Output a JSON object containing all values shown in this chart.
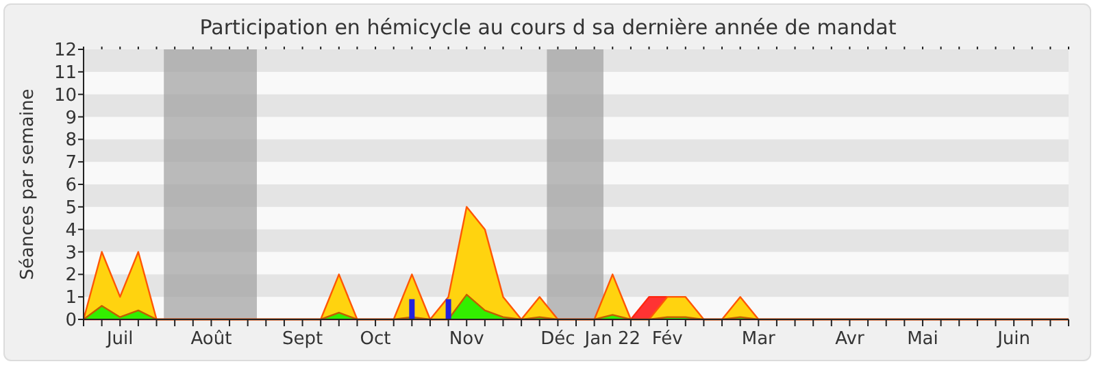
{
  "chart_data": {
    "type": "area",
    "title": "Participation en hémicycle au cours d sa dernière année de mandat",
    "ylabel": "Séances par semaine",
    "categories": [
      null,
      null,
      "Juil",
      null,
      null,
      null,
      null,
      "Août",
      null,
      null,
      null,
      null,
      "Sept",
      null,
      null,
      null,
      "Oct",
      null,
      null,
      null,
      null,
      "Nov",
      null,
      null,
      null,
      null,
      "Déc",
      null,
      null,
      "Jan 22",
      null,
      null,
      "Fév",
      null,
      null,
      null,
      null,
      "Mar",
      null,
      null,
      null,
      null,
      "Avr",
      null,
      null,
      null,
      "Mai",
      null,
      null,
      null,
      null,
      "Juin",
      null,
      null,
      null
    ],
    "series": [
      {
        "color": "#ff3333",
        "values": [
          0,
          0,
          0,
          0,
          0,
          0,
          0,
          0,
          0,
          0,
          0,
          0,
          0,
          0,
          0,
          0,
          0,
          0,
          0,
          0,
          0,
          0,
          0,
          0,
          0,
          0,
          0,
          0,
          0,
          0,
          0,
          1,
          1,
          0,
          0,
          0,
          0,
          0,
          0,
          0,
          0,
          0,
          0,
          0,
          0,
          0,
          0,
          0,
          0,
          0,
          0,
          0,
          0,
          0,
          0
        ]
      },
      {
        "color": "#ffd30f",
        "values": [
          0,
          3,
          1,
          3,
          0,
          0,
          0,
          0,
          0,
          0,
          0,
          0,
          0,
          0,
          2,
          0,
          0,
          0,
          2,
          0,
          1,
          5,
          4,
          1,
          0,
          1,
          0,
          0,
          0,
          2,
          0,
          0,
          1,
          1,
          0,
          0,
          1,
          0,
          0,
          0,
          0,
          0,
          0,
          0,
          0,
          0,
          0,
          0,
          0,
          0,
          0,
          0,
          0,
          0,
          0
        ]
      },
      {
        "color": "#33ee00",
        "values": [
          0,
          0.6,
          0.1,
          0.4,
          0,
          0,
          0,
          0,
          0,
          0,
          0,
          0,
          0,
          0,
          0.3,
          0,
          0,
          0,
          0.1,
          0,
          0,
          1.1,
          0.4,
          0.1,
          0,
          0.1,
          0,
          0,
          0,
          0.2,
          0,
          0,
          0.1,
          0.1,
          0,
          0,
          0.1,
          0,
          0,
          0,
          0,
          0,
          0,
          0,
          0,
          0,
          0,
          0,
          0,
          0,
          0,
          0,
          0,
          0,
          0
        ]
      },
      {
        "type": "bar",
        "color": "#2222dd",
        "values": [
          null,
          null,
          null,
          null,
          null,
          null,
          null,
          null,
          null,
          null,
          null,
          null,
          null,
          null,
          null,
          null,
          null,
          null,
          0.9,
          null,
          0.9,
          null,
          null,
          null,
          null,
          null,
          null,
          null,
          null,
          null,
          null,
          null,
          null,
          null,
          null,
          null,
          null,
          null,
          null,
          null,
          null,
          null,
          null,
          null,
          null,
          null,
          null,
          null,
          null,
          null,
          null,
          null,
          null,
          null,
          null
        ]
      }
    ],
    "ylim": [
      0,
      12
    ],
    "yticks": [
      0,
      1,
      2,
      3,
      4,
      5,
      6,
      7,
      8,
      9,
      10,
      11,
      12
    ]
  }
}
